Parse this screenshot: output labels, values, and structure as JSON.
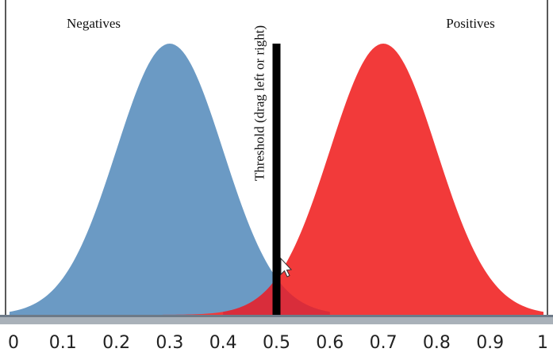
{
  "chart_data": {
    "type": "area",
    "title": "",
    "xlim": [
      0,
      1
    ],
    "x_ticks": [
      "0",
      "0.1",
      "0.2",
      "0.3",
      "0.4",
      "0.5",
      "0.6",
      "0.7",
      "0.8",
      "0.9",
      "1"
    ],
    "series": [
      {
        "name": "Negatives",
        "distribution": "normal",
        "mean": 0.3,
        "sd": 0.1,
        "color": "#6b9ac4"
      },
      {
        "name": "Positives",
        "distribution": "normal",
        "mean": 0.7,
        "sd": 0.1,
        "color": "#f23a3a"
      }
    ],
    "threshold": {
      "value": 0.5,
      "label": "Threshold (drag left or right)",
      "color": "#000000"
    },
    "overlap_color": "#d92d3b"
  },
  "colors": {
    "axis_bar": "#a9b1b9",
    "axis_bar_top": "#6d7a88"
  }
}
